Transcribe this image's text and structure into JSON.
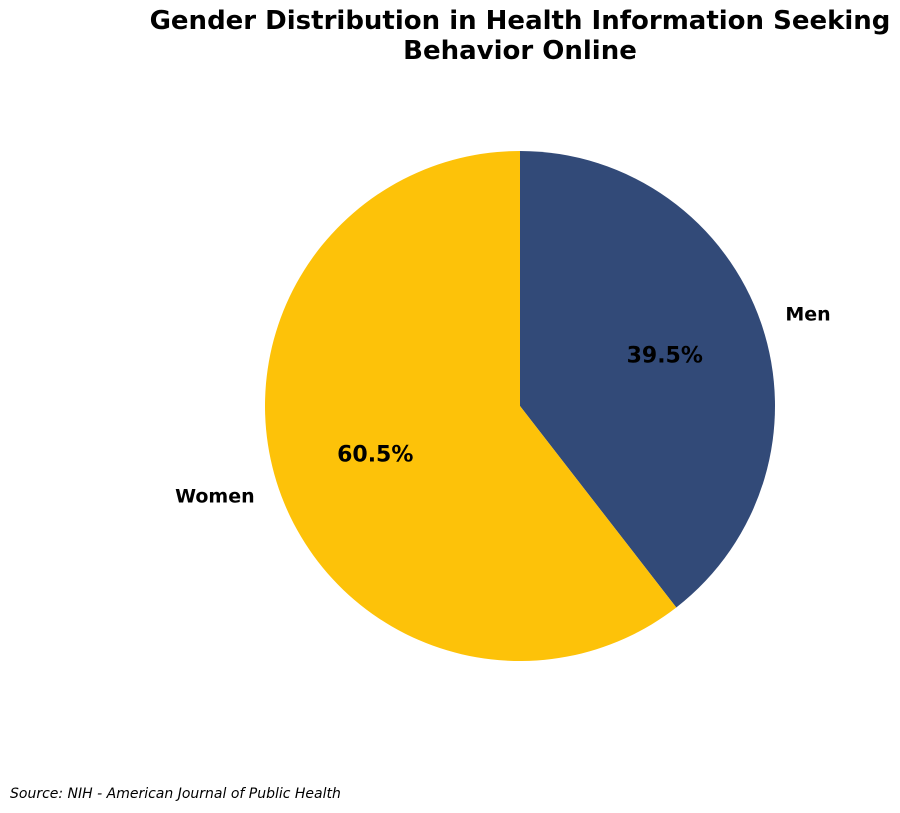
{
  "chart_data": {
    "type": "pie",
    "title": "Gender Distribution in Health Information Seeking Behavior Online",
    "categories": [
      "Men",
      "Women"
    ],
    "values": [
      39.5,
      60.5
    ],
    "value_labels": [
      "39.5%",
      "60.5%"
    ],
    "colors": [
      "#324a78",
      "#fdc209"
    ],
    "source": "Source: NIH - American Journal of Public Health"
  }
}
